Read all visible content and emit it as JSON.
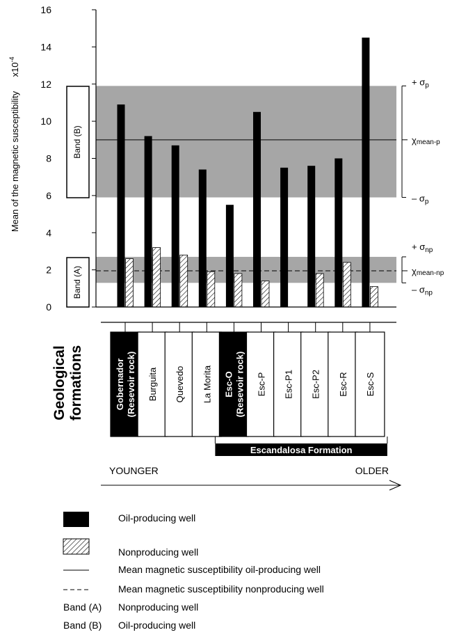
{
  "chart_data": {
    "type": "bar",
    "ylabel": "Mean of the magnetic susceptibility",
    "ylabel_unit": "x10",
    "ylabel_exponent": "-4",
    "ylim": [
      0,
      16
    ],
    "yticks": [
      "0",
      "2",
      "4",
      "6",
      "8",
      "10",
      "12",
      "14",
      "16"
    ],
    "categories": [
      "Gobernador (Resevoir rock)",
      "Burguita",
      "Quevedo",
      "La Morita",
      "Esc-O (Resevoir rock)",
      "Esc-P",
      "Esc-P1",
      "Esc-P2",
      "Esc-R",
      "Esc-S"
    ],
    "category_label_lines": [
      [
        "Gobernador",
        "(Resevoir rock)"
      ],
      [
        "Burguita"
      ],
      [
        "Quevedo"
      ],
      [
        "La Morita"
      ],
      [
        "Esc-O",
        "(Resevoir rock)"
      ],
      [
        "Esc-P"
      ],
      [
        "Esc-P1"
      ],
      [
        "Esc-P2"
      ],
      [
        "Esc-R"
      ],
      [
        "Esc-S"
      ]
    ],
    "reservoir_rock": [
      true,
      false,
      false,
      false,
      true,
      false,
      false,
      false,
      false,
      false
    ],
    "series": [
      {
        "name": "Oil-producing well",
        "values": [
          10.9,
          9.2,
          8.7,
          7.4,
          5.5,
          10.5,
          7.5,
          7.6,
          8.0,
          14.5
        ]
      },
      {
        "name": "Nonproducing well",
        "values": [
          2.6,
          3.2,
          2.8,
          1.9,
          1.8,
          1.4,
          null,
          1.8,
          2.4,
          1.1
        ]
      }
    ],
    "bands": [
      {
        "name": "Band (B)",
        "from": 5.9,
        "to": 11.9,
        "mean": 9.0,
        "upper_label": "+ σ",
        "upper_sub": "p",
        "mean_label": "χ",
        "mean_sub": "mean-p",
        "lower_label": "– σ",
        "lower_sub": "p"
      },
      {
        "name": "Band (A)",
        "from": 1.3,
        "to": 2.7,
        "mean": 1.95,
        "upper_label": "+ σ",
        "upper_sub": "np",
        "mean_label": "χ",
        "mean_sub": "mean-np",
        "lower_label": "– σ",
        "lower_sub": "np"
      }
    ],
    "group_title": "Geological formations",
    "group_title_lines": [
      "Geological",
      "formations"
    ],
    "formation_group_label": "Escandalosa Formation",
    "age_left": "YOUNGER",
    "age_right": "OLDER",
    "legend": [
      {
        "key": "Oil-producing well",
        "symbol": "solid-box",
        "text": "Oil-producing well"
      },
      {
        "key": "Nonproducing well",
        "symbol": "hatched-box",
        "text": "Nonproducing well"
      },
      {
        "key": "mean-producing",
        "symbol": "solid-line",
        "text": "Mean magnetic susceptibility oil-producing well"
      },
      {
        "key": "mean-nonproducing",
        "symbol": "dashed-line",
        "text": "Mean magnetic susceptibility nonproducing well"
      },
      {
        "key": "band-a",
        "symbol": "Band (A)",
        "text": "Nonproducing well"
      },
      {
        "key": "band-b",
        "symbol": "Band (B)",
        "text": "Oil-producing well"
      }
    ],
    "colors": {
      "bar": "#000000",
      "band": "#a6a6a6",
      "hatch": "#000000",
      "background": "#ffffff"
    },
    "grid": false
  }
}
